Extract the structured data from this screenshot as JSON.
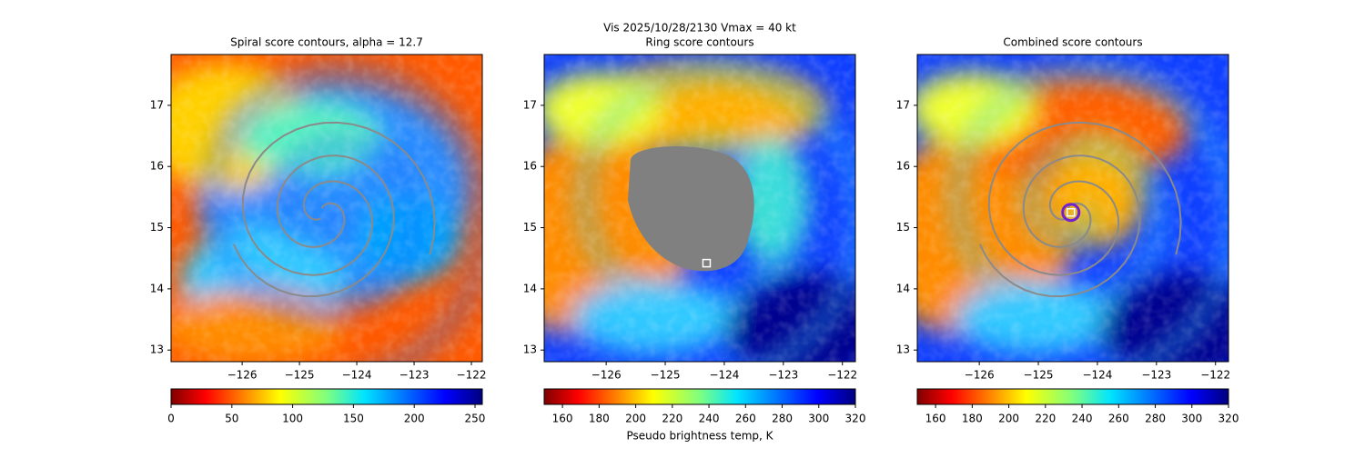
{
  "title": "Vis  2025/10/28/2130    Vmax = 40 kt",
  "chart_data": [
    {
      "type": "image",
      "title": "Spiral score contours, alpha = 12.7",
      "xlim": [
        -127.24,
        -121.81
      ],
      "ylim": [
        12.81,
        17.83
      ],
      "xticks": [
        {
          "value": -126,
          "label": "−126"
        },
        {
          "value": -125,
          "label": "−125"
        },
        {
          "value": -124,
          "label": "−124"
        },
        {
          "value": -123,
          "label": "−123"
        },
        {
          "value": -122,
          "label": "−122"
        }
      ],
      "yticks": [
        13,
        14,
        15,
        16,
        17
      ],
      "colormap": "jet_r",
      "clim": [
        0,
        256
      ],
      "cticks": [
        0,
        50,
        100,
        150,
        200,
        250
      ]
    },
    {
      "type": "image",
      "title": "Ring score contours",
      "xlim": [
        -127.05,
        -121.78
      ],
      "ylim": [
        12.81,
        17.83
      ],
      "xticks": [
        {
          "value": -126,
          "label": "−126"
        },
        {
          "value": -125,
          "label": "−125"
        },
        {
          "value": -124,
          "label": "−124"
        },
        {
          "value": -123,
          "label": "−123"
        },
        {
          "value": -122,
          "label": "−122"
        }
      ],
      "yticks": [
        13,
        14,
        15,
        16,
        17
      ],
      "colormap": "jet_r",
      "clim": [
        150,
        320
      ],
      "cticks": [
        160,
        180,
        200,
        220,
        240,
        260,
        280,
        300,
        320
      ],
      "colorbar_label": "Pseudo brightness temp, K",
      "markers": [
        {
          "x": -124.3,
          "y": 14.42
        }
      ]
    },
    {
      "type": "image",
      "title": "Combined score contours",
      "xlim": [
        -127.05,
        -121.78
      ],
      "ylim": [
        12.81,
        17.83
      ],
      "xticks": [
        {
          "value": -126,
          "label": "−126"
        },
        {
          "value": -125,
          "label": "−125"
        },
        {
          "value": -124,
          "label": "−124"
        },
        {
          "value": -123,
          "label": "−123"
        },
        {
          "value": -122,
          "label": "−122"
        }
      ],
      "yticks": [
        13,
        14,
        15,
        16,
        17
      ],
      "colormap": "jet_r",
      "clim": [
        150,
        320
      ],
      "cticks": [
        160,
        180,
        200,
        220,
        240,
        260,
        280,
        300,
        320
      ],
      "markers": [
        {
          "x": -124.45,
          "y": 15.25
        }
      ]
    }
  ]
}
